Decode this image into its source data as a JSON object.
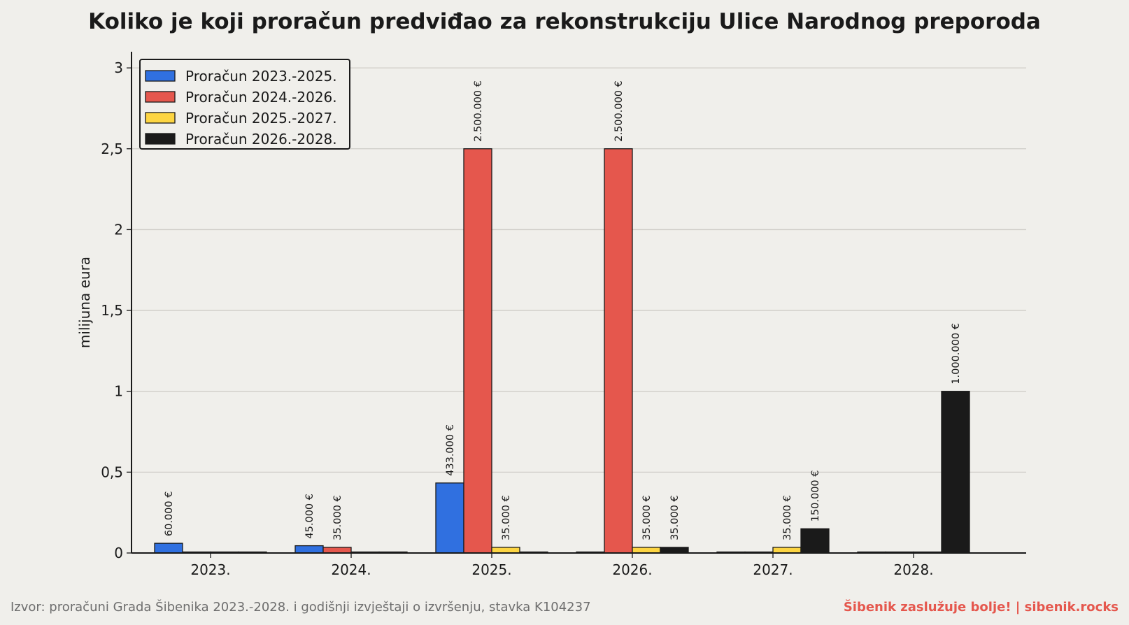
{
  "title": "Koliko je koji proračun predviđao za rekonstrukciju Ulice Narodnog preporoda",
  "footer": {
    "source": "Izvor: proračuni Grada Šibenika 2023.-2028. i godišnji izvještaji o izvršenju, stavka K104237",
    "brand": "Šibenik zaslužuje bolje!  |  sibenik.rocks"
  },
  "colors": {
    "background": "#f0efeb",
    "grid": "#cfcdc8",
    "axis": "#1a1a1a",
    "brand": "#e5574d"
  },
  "chart_data": {
    "type": "bar",
    "categories": [
      "2023.",
      "2024.",
      "2025.",
      "2026.",
      "2027.",
      "2028."
    ],
    "xlabel": "",
    "ylabel": "milijuna eura",
    "ylim": [
      0,
      3.1
    ],
    "yticks": [
      0,
      0.5,
      1,
      1.5,
      2,
      2.5,
      3
    ],
    "ytick_labels": [
      "0",
      "0,5",
      "1",
      "1,5",
      "2",
      "2,5",
      "3"
    ],
    "grid": "horizontal",
    "legend_position": "top-left",
    "series": [
      {
        "name": "Proračun 2023.-2025.",
        "color": "#3070e0",
        "values": [
          0.06,
          0.045,
          0.433,
          0,
          0,
          0
        ],
        "labels": [
          "60.000 €",
          "45.000 €",
          "433.000 €",
          "",
          "",
          ""
        ]
      },
      {
        "name": "Proračun 2024.-2026.",
        "color": "#e5574d",
        "values": [
          0,
          0.035,
          2.5,
          2.5,
          0,
          0
        ],
        "labels": [
          "",
          "35.000 €",
          "2.500.000 €",
          "2.500.000 €",
          "",
          ""
        ]
      },
      {
        "name": "Proračun 2025.-2027.",
        "color": "#fdd542",
        "values": [
          0,
          0,
          0.035,
          0.035,
          0.035,
          0
        ],
        "labels": [
          "",
          "",
          "35.000 €",
          "35.000 €",
          "35.000 €",
          ""
        ]
      },
      {
        "name": "Proračun 2026.-2028.",
        "color": "#1a1a1a",
        "values": [
          0,
          0,
          0,
          0.035,
          0.15,
          1.0
        ],
        "labels": [
          "",
          "",
          "",
          "35.000 €",
          "150.000 €",
          "1.000.000 €"
        ]
      }
    ]
  }
}
